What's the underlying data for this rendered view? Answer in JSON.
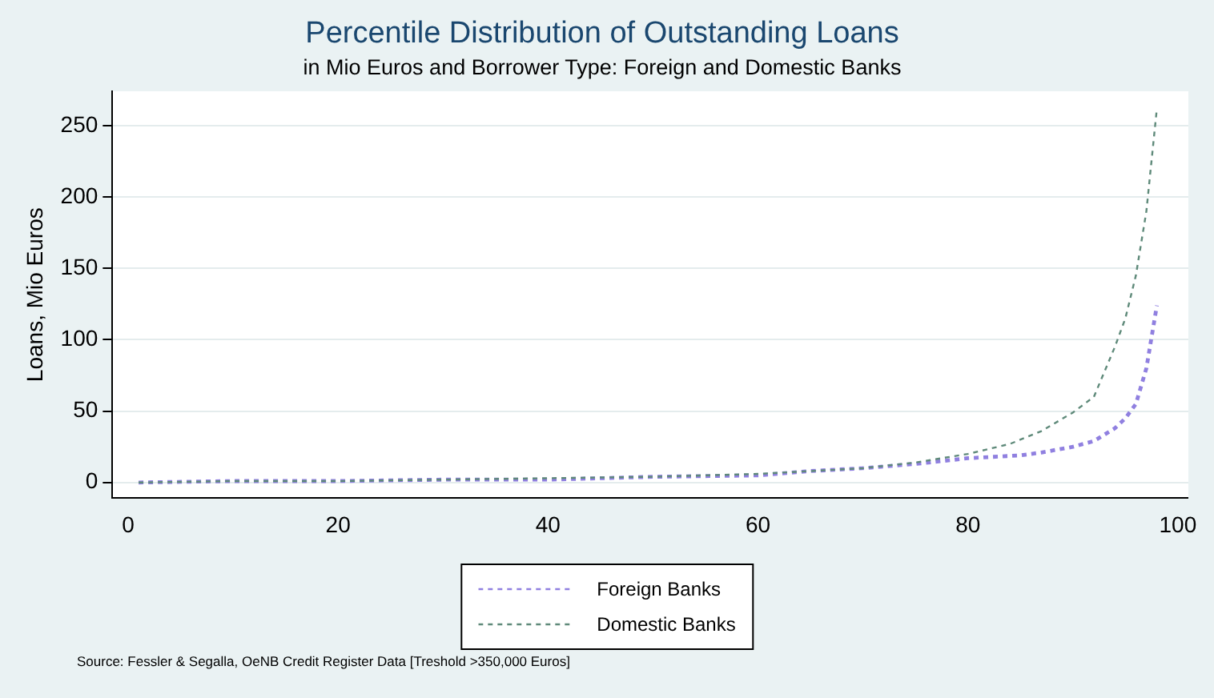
{
  "chart_data": {
    "type": "line",
    "title": "Percentile Distribution of Outstanding Loans",
    "subtitle": "in Mio Euros and Borrower Type: Foreign and Domestic Banks",
    "ylabel": "Loans, Mio Euros",
    "x": [
      1,
      10,
      20,
      30,
      40,
      50,
      60,
      65,
      70,
      75,
      80,
      85,
      87,
      90,
      92,
      94,
      95,
      96,
      97,
      98
    ],
    "series": [
      {
        "name": "Foreign Banks",
        "color": "#9080e0",
        "values": [
          0,
          1,
          1,
          2,
          2,
          4,
          5,
          8,
          10,
          13,
          17,
          19,
          21,
          25,
          29,
          38,
          45,
          55,
          80,
          124
        ]
      },
      {
        "name": "Domestic Banks",
        "color": "#5f8a7a",
        "x": [
          1,
          10,
          20,
          30,
          40,
          50,
          60,
          65,
          70,
          75,
          80,
          84,
          87,
          90,
          92,
          94,
          95,
          96,
          97,
          98
        ],
        "values": [
          0,
          1,
          1,
          2,
          3,
          4,
          6,
          8,
          10,
          14,
          20,
          27,
          36,
          49,
          60,
          95,
          115,
          145,
          190,
          262
        ]
      }
    ],
    "xlim": [
      -1.5,
      101
    ],
    "xticks": [
      0,
      20,
      40,
      60,
      80,
      100
    ],
    "ylim": [
      -11,
      274
    ],
    "yticks": [
      0,
      50,
      100,
      150,
      200,
      250
    ],
    "grid": "y",
    "legend": "bottom",
    "line_style": "dashed",
    "marker": "none",
    "annotations": [
      "Source: Fessler & Segalla, OeNB Credit Register Data [Treshold >350,000 Euros]"
    ]
  }
}
